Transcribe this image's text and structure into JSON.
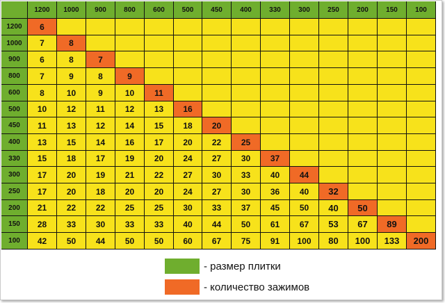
{
  "colors": {
    "header": "#6fae2e",
    "cell": "#f7e21b",
    "diagonal": "#f06a26",
    "border": "#111111",
    "page": "#ffffff"
  },
  "legend": [
    {
      "color": "#6fae2e",
      "text": "- размер плитки"
    },
    {
      "color": "#f06a26",
      "text": "- количество зажимов"
    }
  ],
  "chart_data": {
    "type": "table",
    "corner": "",
    "columns": [
      "1200",
      "1000",
      "900",
      "800",
      "600",
      "500",
      "450",
      "400",
      "330",
      "300",
      "250",
      "200",
      "150",
      "100"
    ],
    "rows": [
      {
        "label": "1200",
        "values": [
          "6"
        ]
      },
      {
        "label": "1000",
        "values": [
          "7",
          "8"
        ]
      },
      {
        "label": "900",
        "values": [
          "6",
          "8",
          "7"
        ]
      },
      {
        "label": "800",
        "values": [
          "7",
          "9",
          "8",
          "9"
        ]
      },
      {
        "label": "600",
        "values": [
          "8",
          "10",
          "9",
          "10",
          "11"
        ]
      },
      {
        "label": "500",
        "values": [
          "10",
          "12",
          "11",
          "12",
          "13",
          "16"
        ]
      },
      {
        "label": "450",
        "values": [
          "11",
          "13",
          "12",
          "14",
          "15",
          "18",
          "20"
        ]
      },
      {
        "label": "400",
        "values": [
          "13",
          "15",
          "14",
          "16",
          "17",
          "20",
          "22",
          "25"
        ]
      },
      {
        "label": "330",
        "values": [
          "15",
          "18",
          "17",
          "19",
          "20",
          "24",
          "27",
          "30",
          "37"
        ]
      },
      {
        "label": "300",
        "values": [
          "17",
          "20",
          "19",
          "21",
          "22",
          "27",
          "30",
          "33",
          "40",
          "44"
        ]
      },
      {
        "label": "250",
        "values": [
          "17",
          "20",
          "18",
          "20",
          "20",
          "24",
          "27",
          "30",
          "36",
          "40",
          "32"
        ]
      },
      {
        "label": "200",
        "values": [
          "21",
          "22",
          "22",
          "25",
          "25",
          "30",
          "33",
          "37",
          "45",
          "50",
          "40",
          "50"
        ]
      },
      {
        "label": "150",
        "values": [
          "28",
          "33",
          "30",
          "33",
          "33",
          "40",
          "44",
          "50",
          "61",
          "67",
          "53",
          "67",
          "89"
        ]
      },
      {
        "label": "100",
        "values": [
          "42",
          "50",
          "44",
          "50",
          "50",
          "60",
          "67",
          "75",
          "91",
          "100",
          "80",
          "100",
          "133",
          "200"
        ]
      }
    ]
  }
}
